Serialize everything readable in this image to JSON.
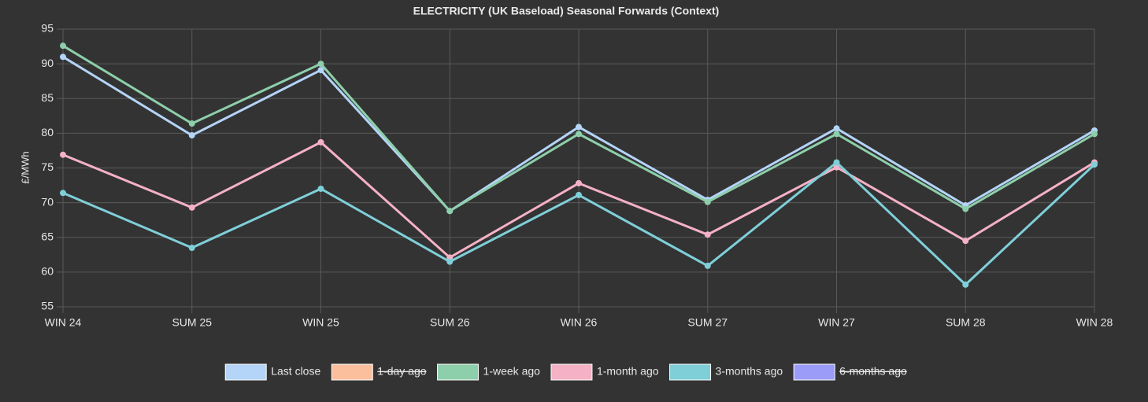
{
  "chart_data": {
    "type": "line",
    "title": "ELECTRICITY (UK Baseload) Seasonal Forwards (Context)",
    "y_label": "£/MWh",
    "categories": [
      "WIN 24",
      "SUM 25",
      "WIN 25",
      "SUM 26",
      "WIN 26",
      "SUM 27",
      "WIN 27",
      "SUM 28",
      "WIN 28"
    ],
    "ylim": [
      55,
      95
    ],
    "yticks": [
      55,
      60,
      65,
      70,
      75,
      80,
      85,
      90,
      95
    ],
    "grid": true,
    "legend": "bottom",
    "series": [
      {
        "name": "Last close",
        "color": "#b4d4f8",
        "values": [
          91.0,
          79.7,
          89.1,
          68.8,
          80.9,
          70.4,
          80.7,
          69.6,
          80.4
        ]
      },
      {
        "name": "1-day ago",
        "color": "#fbbf9e",
        "hidden": true
      },
      {
        "name": "1-week ago",
        "color": "#8dcfaa",
        "values": [
          92.6,
          81.4,
          90.0,
          68.8,
          79.9,
          70.1,
          79.9,
          69.1,
          79.9
        ]
      },
      {
        "name": "1-month ago",
        "color": "#f5b1c6",
        "values": [
          76.9,
          69.3,
          78.7,
          62.1,
          72.8,
          65.4,
          75.1,
          64.5,
          75.8
        ]
      },
      {
        "name": "3-months ago",
        "color": "#7fcfd9",
        "values": [
          71.4,
          63.5,
          72.0,
          61.5,
          71.1,
          60.9,
          75.8,
          58.2,
          75.5
        ]
      },
      {
        "name": "6-months ago",
        "color": "#9b9cf7",
        "hidden": true
      }
    ]
  }
}
